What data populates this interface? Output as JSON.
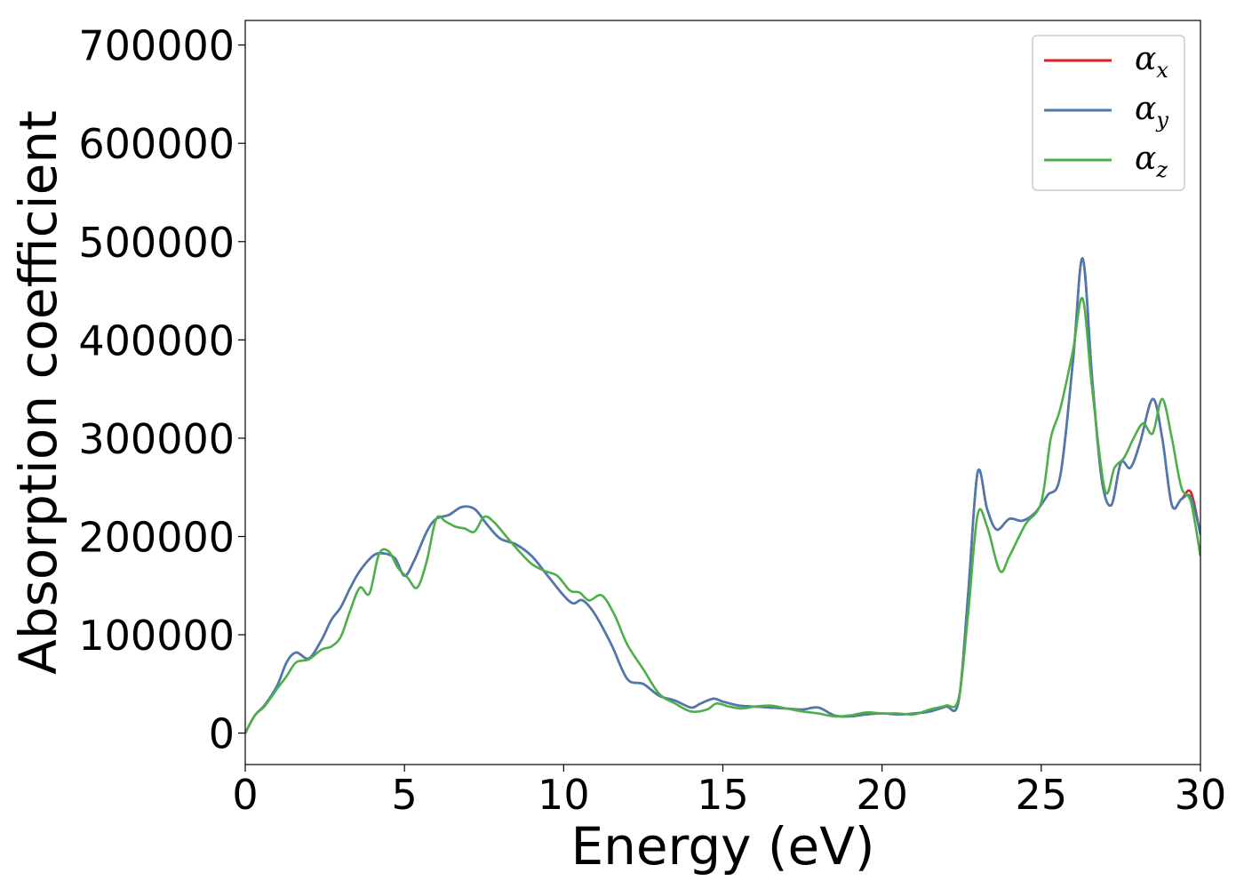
{
  "chart_data": {
    "type": "line",
    "xlabel": "Energy (eV)",
    "ylabel": "Absorption coefficient",
    "xlim": [
      0,
      30
    ],
    "ylim": [
      -32000,
      725000
    ],
    "xticks": [
      0,
      5,
      10,
      15,
      20,
      25,
      30
    ],
    "yticks": [
      0,
      100000,
      200000,
      300000,
      400000,
      500000,
      600000,
      700000
    ],
    "grid": false,
    "legend_position": "top-right",
    "series": [
      {
        "name": "α",
        "subscript": "x",
        "color": "#e41a1c",
        "x": [
          0,
          0.3,
          0.6,
          1.0,
          1.3,
          1.6,
          2.0,
          2.4,
          2.7,
          3.0,
          3.3,
          3.6,
          4.0,
          4.3,
          4.7,
          5.0,
          5.3,
          5.7,
          6.0,
          6.4,
          6.8,
          7.2,
          7.6,
          8.0,
          8.5,
          9.0,
          9.5,
          10.0,
          10.3,
          10.6,
          11.0,
          11.5,
          12.0,
          12.5,
          13.0,
          13.5,
          14.0,
          14.3,
          14.7,
          15.0,
          15.5,
          16.0,
          16.5,
          17.0,
          17.5,
          18.0,
          18.5,
          19.0,
          19.5,
          20.0,
          20.5,
          21.0,
          21.5,
          22.0,
          22.4,
          22.7,
          23.0,
          23.3,
          23.6,
          24.0,
          24.4,
          24.8,
          25.2,
          25.6,
          26.0,
          26.3,
          26.6,
          26.9,
          27.2,
          27.5,
          27.8,
          28.1,
          28.5,
          28.8,
          29.1,
          29.4,
          29.7,
          30.0
        ],
        "values": [
          0,
          18000,
          28000,
          48000,
          72000,
          82000,
          76000,
          95000,
          115000,
          128000,
          148000,
          165000,
          180000,
          183000,
          178000,
          160000,
          175000,
          205000,
          218000,
          222000,
          230000,
          228000,
          212000,
          198000,
          192000,
          180000,
          160000,
          140000,
          132000,
          135000,
          120000,
          90000,
          55000,
          50000,
          38000,
          33000,
          26000,
          30000,
          35000,
          32000,
          28000,
          27000,
          26000,
          25000,
          24000,
          26000,
          18000,
          17000,
          19000,
          20000,
          19000,
          20000,
          22000,
          27000,
          32000,
          140000,
          265000,
          228000,
          207000,
          218000,
          216000,
          224000,
          242000,
          262000,
          380000,
          483000,
          360000,
          258000,
          232000,
          275000,
          270000,
          295000,
          340000,
          300000,
          232000,
          238000,
          245000,
          202000
        ]
      },
      {
        "name": "α",
        "subscript": "y",
        "color": "#4a7ab0",
        "x": [
          0,
          0.3,
          0.6,
          1.0,
          1.3,
          1.6,
          2.0,
          2.4,
          2.7,
          3.0,
          3.3,
          3.6,
          4.0,
          4.3,
          4.7,
          5.0,
          5.3,
          5.7,
          6.0,
          6.4,
          6.8,
          7.2,
          7.6,
          8.0,
          8.5,
          9.0,
          9.5,
          10.0,
          10.3,
          10.6,
          11.0,
          11.5,
          12.0,
          12.5,
          13.0,
          13.5,
          14.0,
          14.3,
          14.7,
          15.0,
          15.5,
          16.0,
          16.5,
          17.0,
          17.5,
          18.0,
          18.5,
          19.0,
          19.5,
          20.0,
          20.5,
          21.0,
          21.5,
          22.0,
          22.4,
          22.7,
          23.0,
          23.3,
          23.6,
          24.0,
          24.4,
          24.8,
          25.2,
          25.6,
          26.0,
          26.3,
          26.6,
          26.9,
          27.2,
          27.5,
          27.8,
          28.1,
          28.5,
          28.8,
          29.1,
          29.4,
          29.7,
          30.0
        ],
        "values": [
          0,
          18000,
          28000,
          48000,
          72000,
          82000,
          76000,
          95000,
          115000,
          128000,
          148000,
          165000,
          180000,
          183000,
          178000,
          160000,
          175000,
          205000,
          218000,
          222000,
          230000,
          228000,
          212000,
          198000,
          192000,
          180000,
          160000,
          140000,
          132000,
          135000,
          120000,
          90000,
          55000,
          50000,
          38000,
          33000,
          26000,
          30000,
          35000,
          32000,
          28000,
          27000,
          26000,
          25000,
          24000,
          26000,
          18000,
          17000,
          19000,
          20000,
          19000,
          20000,
          22000,
          27000,
          32000,
          140000,
          265000,
          228000,
          207000,
          218000,
          216000,
          224000,
          242000,
          262000,
          380000,
          483000,
          360000,
          258000,
          232000,
          275000,
          270000,
          295000,
          340000,
          300000,
          232000,
          238000,
          240000,
          202000
        ]
      },
      {
        "name": "α",
        "subscript": "z",
        "color": "#4daf4a",
        "x": [
          0,
          0.3,
          0.6,
          1.0,
          1.3,
          1.6,
          2.0,
          2.4,
          2.7,
          3.0,
          3.3,
          3.6,
          3.9,
          4.2,
          4.5,
          4.8,
          5.1,
          5.4,
          5.7,
          6.0,
          6.3,
          6.6,
          6.9,
          7.2,
          7.5,
          7.8,
          8.2,
          8.6,
          9.0,
          9.4,
          9.8,
          10.2,
          10.5,
          10.8,
          11.2,
          11.6,
          12.0,
          12.5,
          13.0,
          13.5,
          14.0,
          14.5,
          14.8,
          15.2,
          15.6,
          16.0,
          16.5,
          17.0,
          17.5,
          18.0,
          18.5,
          19.0,
          19.5,
          20.0,
          20.5,
          21.0,
          21.5,
          22.0,
          22.4,
          22.7,
          23.0,
          23.3,
          23.7,
          24.0,
          24.5,
          25.0,
          25.3,
          25.6,
          26.0,
          26.3,
          26.6,
          27.0,
          27.3,
          27.6,
          27.9,
          28.2,
          28.5,
          28.8,
          29.1,
          29.4,
          29.7,
          30.0
        ],
        "values": [
          0,
          18000,
          27000,
          45000,
          58000,
          72000,
          75000,
          85000,
          88000,
          98000,
          125000,
          148000,
          142000,
          182000,
          185000,
          168000,
          158000,
          148000,
          175000,
          218000,
          215000,
          210000,
          208000,
          205000,
          220000,
          215000,
          200000,
          185000,
          172000,
          165000,
          160000,
          145000,
          143000,
          135000,
          140000,
          120000,
          90000,
          65000,
          40000,
          30000,
          22000,
          24000,
          30000,
          27000,
          25000,
          27000,
          28000,
          25000,
          22000,
          20000,
          17000,
          18000,
          21000,
          20000,
          20000,
          19000,
          24000,
          28000,
          35000,
          120000,
          222000,
          210000,
          165000,
          180000,
          212000,
          235000,
          300000,
          330000,
          390000,
          442000,
          350000,
          247000,
          270000,
          280000,
          300000,
          315000,
          305000,
          340000,
          300000,
          250000,
          235000,
          180000
        ]
      }
    ]
  }
}
